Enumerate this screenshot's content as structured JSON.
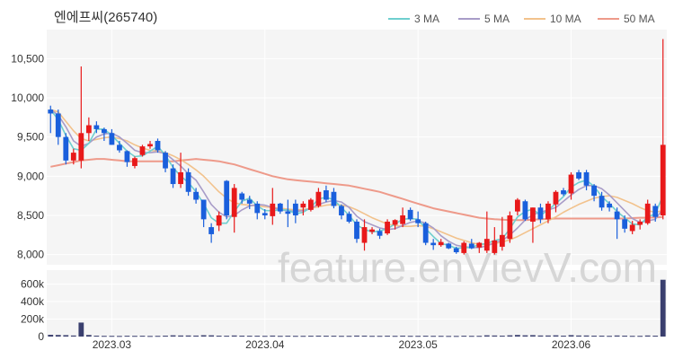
{
  "chart_data": {
    "type": "candlestick",
    "title": "엔에프씨(265740)",
    "watermark": "feature.enVievV.com",
    "legend": [
      "3 MA",
      "5 MA",
      "10 MA",
      "50 MA"
    ],
    "legend_position": "top-right",
    "colors": {
      "up": "#e8191a",
      "down": "#1a5fdc",
      "ma3": "#6fcfcf",
      "ma5": "#a89cc8",
      "ma10": "#f2c28c",
      "ma50": "#ee9a8a",
      "volume": "#3a3f6e",
      "panel_bg": "#f5f5f5"
    },
    "price_axis": {
      "ticks": [
        8000,
        8500,
        9000,
        9500,
        10000,
        10500
      ],
      "tick_labels": [
        "8,000",
        "8,500",
        "9,000",
        "9,500",
        "10,000",
        "10,500"
      ],
      "ylim": [
        7870,
        10870
      ]
    },
    "volume_axis": {
      "ticks": [
        0,
        200000,
        400000,
        600000
      ],
      "tick_labels": [
        "0",
        "200k",
        "400k",
        "600k"
      ],
      "ylim": [
        0,
        760000
      ]
    },
    "x_labels": [
      {
        "label": "2023.03",
        "index": 8
      },
      {
        "label": "2023.04",
        "index": 28
      },
      {
        "label": "2023.05",
        "index": 48
      },
      {
        "label": "2023.06",
        "index": 68
      }
    ],
    "ohlc": [
      [
        9850,
        9900,
        9550,
        9800
      ],
      [
        9800,
        9850,
        9400,
        9500
      ],
      [
        9500,
        9550,
        9150,
        9200
      ],
      [
        9200,
        9350,
        9150,
        9300
      ],
      [
        9200,
        10400,
        9100,
        9550
      ],
      [
        9550,
        9750,
        9450,
        9650
      ],
      [
        9650,
        9700,
        9550,
        9600
      ],
      [
        9600,
        9620,
        9450,
        9550
      ],
      [
        9550,
        9600,
        9400,
        9400
      ],
      [
        9400,
        9450,
        9300,
        9330
      ],
      [
        9320,
        9330,
        9120,
        9180
      ],
      [
        9130,
        9250,
        9100,
        9230
      ],
      [
        9270,
        9400,
        9250,
        9380
      ],
      [
        9380,
        9450,
        9350,
        9410
      ],
      [
        9450,
        9480,
        9300,
        9330
      ],
      [
        9300,
        9320,
        9050,
        9100
      ],
      [
        9100,
        9150,
        8850,
        8900
      ],
      [
        8900,
        9300,
        8850,
        9050
      ],
      [
        9050,
        9100,
        8750,
        8800
      ],
      [
        8800,
        8850,
        8650,
        8700
      ],
      [
        8700,
        8700,
        8350,
        8450
      ],
      [
        8350,
        8400,
        8150,
        8260
      ],
      [
        8370,
        8550,
        8300,
        8500
      ],
      [
        8940,
        8950,
        8450,
        8500
      ],
      [
        8480,
        8900,
        8280,
        8850
      ],
      [
        8780,
        8800,
        8650,
        8700
      ],
      [
        8700,
        8750,
        8580,
        8650
      ],
      [
        8650,
        8680,
        8450,
        8530
      ],
      [
        8530,
        8580,
        8450,
        8500
      ],
      [
        8490,
        8850,
        8380,
        8650
      ],
      [
        8650,
        8660,
        8520,
        8550
      ],
      [
        8550,
        8700,
        8350,
        8520
      ],
      [
        8650,
        8700,
        8400,
        8500
      ],
      [
        8600,
        8680,
        8500,
        8650
      ],
      [
        8570,
        8720,
        8550,
        8700
      ],
      [
        8620,
        8850,
        8600,
        8800
      ],
      [
        8820,
        8880,
        8670,
        8700
      ],
      [
        8800,
        8850,
        8590,
        8620
      ],
      [
        8620,
        8640,
        8450,
        8500
      ],
      [
        8520,
        8550,
        8400,
        8420
      ],
      [
        8420,
        8450,
        8150,
        8200
      ],
      [
        8150,
        8450,
        8050,
        8350
      ],
      [
        8290,
        8350,
        8260,
        8320
      ],
      [
        8300,
        8330,
        8200,
        8240
      ],
      [
        8270,
        8450,
        8250,
        8420
      ],
      [
        8380,
        8450,
        8320,
        8440
      ],
      [
        8390,
        8600,
        8350,
        8500
      ],
      [
        8570,
        8600,
        8430,
        8450
      ],
      [
        8450,
        8550,
        8350,
        8400
      ],
      [
        8400,
        8420,
        8120,
        8150
      ],
      [
        8150,
        8200,
        8060,
        8120
      ],
      [
        8120,
        8200,
        8100,
        8160
      ],
      [
        8140,
        8150,
        8070,
        8080
      ],
      [
        8080,
        8100,
        8010,
        8030
      ],
      [
        8020,
        8170,
        8000,
        8150
      ],
      [
        8140,
        8200,
        8070,
        8080
      ],
      [
        8090,
        8160,
        8020,
        8150
      ],
      [
        8050,
        8550,
        8020,
        8200
      ],
      [
        8020,
        8350,
        8000,
        8180
      ],
      [
        8100,
        8480,
        8050,
        8250
      ],
      [
        8200,
        8550,
        8150,
        8500
      ],
      [
        8550,
        8720,
        8500,
        8700
      ],
      [
        8680,
        8700,
        8430,
        8450
      ],
      [
        8420,
        8600,
        8150,
        8600
      ],
      [
        8600,
        8650,
        8400,
        8450
      ],
      [
        8450,
        8680,
        8400,
        8650
      ],
      [
        8640,
        8820,
        8540,
        8800
      ],
      [
        8820,
        8850,
        8750,
        8770
      ],
      [
        8780,
        9050,
        8700,
        9020
      ],
      [
        9050,
        9080,
        8950,
        8970
      ],
      [
        9050,
        9080,
        8820,
        8880
      ],
      [
        8880,
        8900,
        8680,
        8750
      ],
      [
        8750,
        8800,
        8560,
        8600
      ],
      [
        8650,
        8680,
        8550,
        8600
      ],
      [
        8550,
        8600,
        8200,
        8450
      ],
      [
        8450,
        8500,
        8280,
        8330
      ],
      [
        8300,
        8430,
        8260,
        8380
      ],
      [
        8380,
        8450,
        8320,
        8420
      ],
      [
        8400,
        8700,
        8380,
        8650
      ],
      [
        8620,
        8650,
        8420,
        8480
      ],
      [
        8500,
        10750,
        8450,
        9400
      ]
    ],
    "ma3": [
      9850,
      9720,
      9520,
      9350,
      9330,
      9420,
      9600,
      9600,
      9520,
      9420,
      9320,
      9250,
      9260,
      9320,
      9380,
      9270,
      9110,
      9000,
      8920,
      8800,
      8650,
      8470,
      8400,
      8400,
      8550,
      8680,
      8720,
      8620,
      8560,
      8560,
      8570,
      8570,
      8520,
      8540,
      8600,
      8710,
      8730,
      8700,
      8600,
      8500,
      8380,
      8320,
      8290,
      8300,
      8330,
      8390,
      8450,
      8460,
      8450,
      8330,
      8230,
      8140,
      8120,
      8080,
      8090,
      8090,
      8130,
      8140,
      8180,
      8200,
      8330,
      8480,
      8550,
      8580,
      8500,
      8570,
      8650,
      8740,
      8860,
      8920,
      8950,
      8870,
      8740,
      8650,
      8550,
      8470,
      8390,
      8380,
      8480,
      8520,
      8750
    ],
    "ma5": [
      9850,
      9780,
      9630,
      9450,
      9380,
      9420,
      9500,
      9540,
      9550,
      9500,
      9420,
      9330,
      9300,
      9300,
      9310,
      9290,
      9210,
      9130,
      9030,
      8950,
      8800,
      8640,
      8540,
      8480,
      8500,
      8570,
      8620,
      8640,
      8630,
      8600,
      8570,
      8560,
      8550,
      8560,
      8590,
      8640,
      8670,
      8690,
      8670,
      8600,
      8490,
      8420,
      8380,
      8340,
      8320,
      8330,
      8370,
      8410,
      8430,
      8400,
      8340,
      8240,
      8170,
      8120,
      8100,
      8090,
      8090,
      8110,
      8150,
      8180,
      8250,
      8340,
      8440,
      8510,
      8540,
      8570,
      8600,
      8680,
      8760,
      8830,
      8880,
      8880,
      8840,
      8760,
      8660,
      8560,
      8460,
      8410,
      8430,
      8450,
      8580
    ],
    "ma10": [
      9850,
      9820,
      9700,
      9580,
      9480,
      9450,
      9470,
      9490,
      9500,
      9480,
      9450,
      9400,
      9360,
      9330,
      9320,
      9300,
      9260,
      9210,
      9150,
      9080,
      9000,
      8900,
      8800,
      8720,
      8660,
      8640,
      8630,
      8620,
      8610,
      8600,
      8590,
      8580,
      8570,
      8575,
      8590,
      8610,
      8630,
      8640,
      8630,
      8610,
      8570,
      8520,
      8470,
      8430,
      8390,
      8370,
      8360,
      8360,
      8370,
      8360,
      8330,
      8290,
      8250,
      8210,
      8180,
      8150,
      8130,
      8130,
      8140,
      8160,
      8190,
      8230,
      8280,
      8330,
      8380,
      8430,
      8480,
      8540,
      8590,
      8640,
      8680,
      8720,
      8740,
      8750,
      8730,
      8690,
      8650,
      8600,
      8560,
      8540,
      8560
    ],
    "ma50": [
      9120,
      9140,
      9160,
      9180,
      9200,
      9210,
      9220,
      9220,
      9210,
      9200,
      9190,
      9190,
      9190,
      9190,
      9190,
      9190,
      9190,
      9200,
      9210,
      9220,
      9210,
      9200,
      9190,
      9170,
      9150,
      9120,
      9090,
      9060,
      9030,
      9000,
      8980,
      8960,
      8950,
      8940,
      8930,
      8920,
      8910,
      8900,
      8890,
      8880,
      8860,
      8840,
      8820,
      8800,
      8770,
      8740,
      8710,
      8680,
      8650,
      8620,
      8590,
      8570,
      8550,
      8530,
      8510,
      8490,
      8470,
      8460,
      8450,
      8445,
      8440,
      8440,
      8440,
      8445,
      8450,
      8455,
      8460,
      8460,
      8460,
      8460,
      8460,
      8460,
      8460,
      8460,
      8460,
      8460,
      8465,
      8470,
      8470,
      8475,
      8480
    ],
    "volume": [
      20000,
      18000,
      16000,
      12000,
      160000,
      18000,
      10000,
      8000,
      8000,
      7000,
      9000,
      8000,
      9000,
      7000,
      8000,
      10000,
      14000,
      12000,
      12000,
      11000,
      15000,
      14000,
      10000,
      9000,
      12000,
      10000,
      9000,
      9000,
      8000,
      11000,
      8000,
      9000,
      8000,
      8000,
      9000,
      10000,
      9000,
      9000,
      8000,
      8000,
      11000,
      10000,
      8000,
      8000,
      9000,
      8000,
      10000,
      8000,
      8000,
      9000,
      8000,
      8000,
      7000,
      7000,
      9000,
      8000,
      8000,
      14000,
      12000,
      10000,
      14000,
      18000,
      14000,
      16000,
      12000,
      12000,
      14000,
      10000,
      16000,
      12000,
      12000,
      10000,
      10000,
      8000,
      12000,
      10000,
      8000,
      8000,
      12000,
      10000,
      650000
    ]
  }
}
